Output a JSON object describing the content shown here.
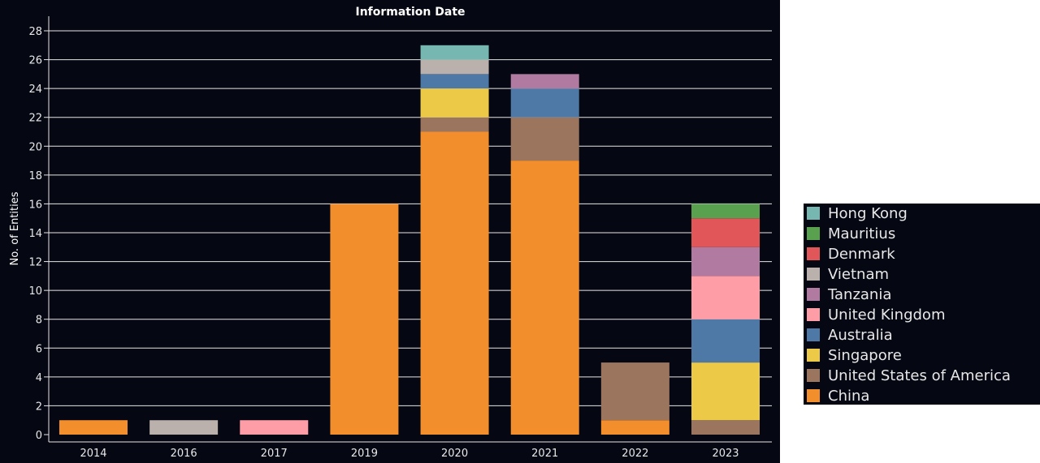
{
  "chart_data": {
    "type": "bar",
    "stacked": true,
    "title": "Information Date",
    "xlabel": "",
    "ylabel": "No. of Entities",
    "ylim": [
      0,
      28
    ],
    "yticks": [
      0,
      2,
      4,
      6,
      8,
      10,
      12,
      14,
      16,
      18,
      20,
      22,
      24,
      26,
      28
    ],
    "grid": true,
    "legend_position": "right",
    "categories": [
      "2014",
      "2016",
      "2017",
      "2019",
      "2020",
      "2021",
      "2022",
      "2023"
    ],
    "series": [
      {
        "name": "China",
        "color": "#f28e2b",
        "values": [
          1,
          0,
          0,
          16,
          21,
          19,
          1,
          0
        ]
      },
      {
        "name": "United States of America",
        "color": "#9c755f",
        "values": [
          0,
          0,
          0,
          0,
          1,
          3,
          4,
          1
        ]
      },
      {
        "name": "Singapore",
        "color": "#edc948",
        "values": [
          0,
          0,
          0,
          0,
          2,
          0,
          0,
          4
        ]
      },
      {
        "name": "Australia",
        "color": "#4e79a7",
        "values": [
          0,
          0,
          0,
          0,
          1,
          2,
          0,
          3
        ]
      },
      {
        "name": "United Kingdom",
        "color": "#ff9da7",
        "values": [
          0,
          0,
          1,
          0,
          0,
          0,
          0,
          3
        ]
      },
      {
        "name": "Tanzania",
        "color": "#b07aa1",
        "values": [
          0,
          0,
          0,
          0,
          0,
          1,
          0,
          2
        ]
      },
      {
        "name": "Vietnam",
        "color": "#bab0ac",
        "values": [
          0,
          1,
          0,
          0,
          1,
          0,
          0,
          0
        ]
      },
      {
        "name": "Denmark",
        "color": "#e15759",
        "values": [
          0,
          0,
          0,
          0,
          0,
          0,
          0,
          2
        ]
      },
      {
        "name": "Mauritius",
        "color": "#59a14f",
        "values": [
          0,
          0,
          0,
          0,
          0,
          0,
          0,
          1
        ]
      },
      {
        "name": "Hong Kong",
        "color": "#76b7b2",
        "values": [
          0,
          0,
          0,
          0,
          1,
          0,
          0,
          0
        ]
      }
    ],
    "legend_order": [
      "Hong Kong",
      "Mauritius",
      "Denmark",
      "Vietnam",
      "Tanzania",
      "United Kingdom",
      "Australia",
      "Singapore",
      "United States of America",
      "China"
    ]
  },
  "colors": {
    "background": "#050713",
    "gridline": "#e6e6e6",
    "text": "#e8e8e8"
  }
}
